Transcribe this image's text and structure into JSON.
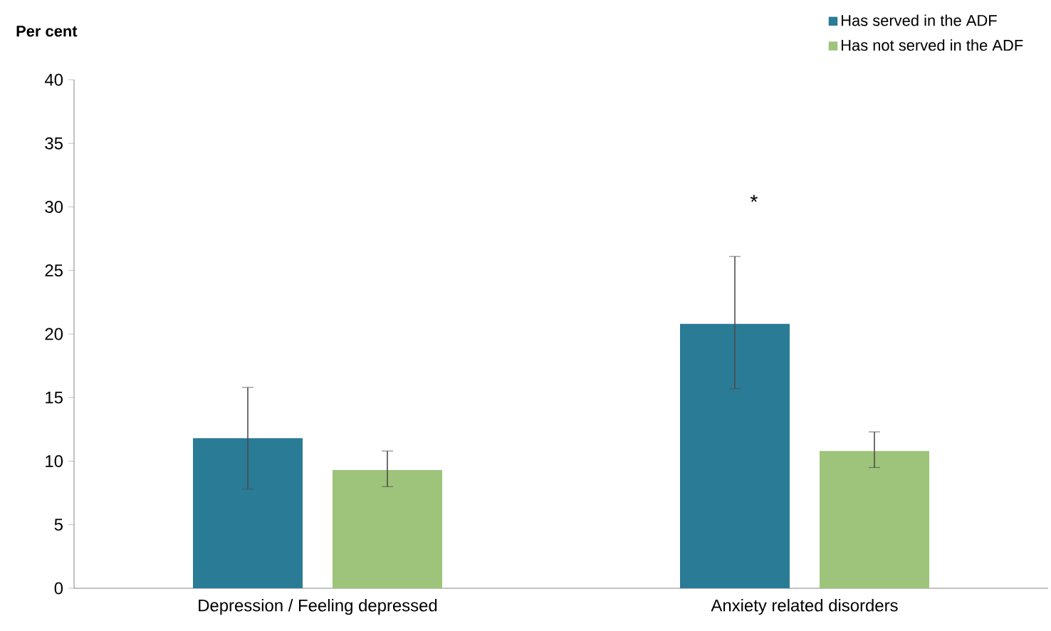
{
  "chart_data": {
    "type": "bar",
    "ylabel": "Per cent",
    "categories": [
      "Depression / Feeling depressed",
      "Anxiety related disorders"
    ],
    "series": [
      {
        "name": "Has served in the ADF",
        "color": "#2a7b96",
        "values": [
          11.8,
          20.8
        ],
        "errors": [
          [
            7.8,
            15.8
          ],
          [
            15.7,
            26.1
          ]
        ]
      },
      {
        "name": "Has not served in the ADF",
        "color": "#9dc47a",
        "values": [
          9.3,
          10.8
        ],
        "errors": [
          [
            8.0,
            10.8
          ],
          [
            9.5,
            12.3
          ]
        ]
      }
    ],
    "ylim": [
      0,
      40
    ],
    "yticks": [
      0,
      5,
      10,
      15,
      20,
      25,
      30,
      35,
      40
    ],
    "annotations": [
      "*"
    ],
    "grid": false,
    "legend": "top right"
  }
}
